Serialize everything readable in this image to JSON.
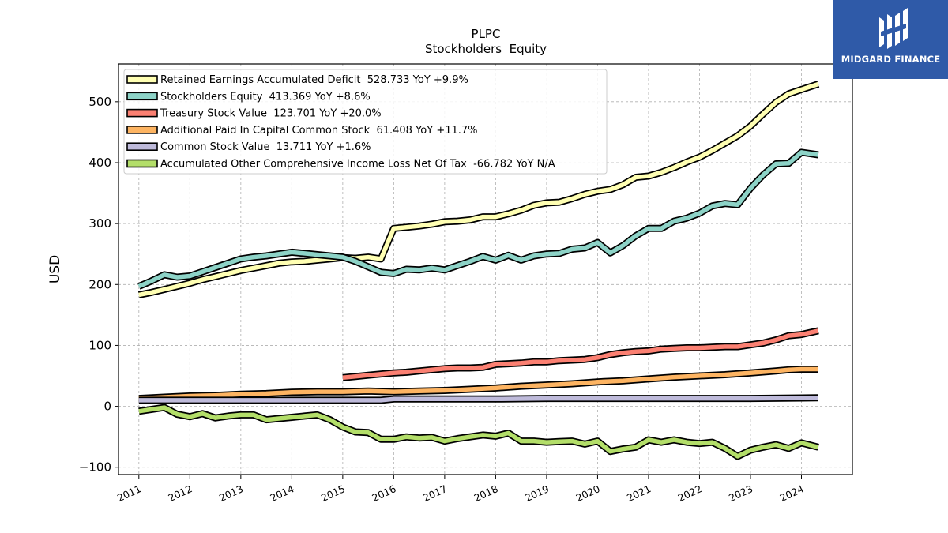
{
  "brand": {
    "name": "MIDGARD FINANCE"
  },
  "chart_data": {
    "type": "line",
    "title": "PLPC",
    "subtitle": "Stockholders  Equity",
    "ylabel": "USD",
    "xlabel": "",
    "xlim": [
      2010.6,
      2025.0
    ],
    "ylim": [
      -112,
      562
    ],
    "yticks": [
      -100,
      0,
      100,
      200,
      300,
      400,
      500
    ],
    "ytick_labels": [
      "−100",
      "0",
      "100",
      "200",
      "300",
      "400",
      "500"
    ],
    "xticks": [
      2011,
      2012,
      2013,
      2014,
      2015,
      2016,
      2017,
      2018,
      2019,
      2020,
      2021,
      2022,
      2023,
      2024
    ],
    "xtick_labels": [
      "2011",
      "2012",
      "2013",
      "2014",
      "2015",
      "2016",
      "2017",
      "2018",
      "2019",
      "2020",
      "2021",
      "2022",
      "2023",
      "2024"
    ],
    "grid": true,
    "legend_position": "top-left",
    "series": [
      {
        "name": "Retained Earnings Accumulated Deficit",
        "legend_label": "Retained Earnings Accumulated Deficit  528.733 YoY +9.9%",
        "color": "#ffffb3",
        "points": [
          [
            2011.0,
            183
          ],
          [
            2011.25,
            187
          ],
          [
            2011.5,
            192
          ],
          [
            2011.75,
            197
          ],
          [
            2012.0,
            202
          ],
          [
            2012.25,
            208
          ],
          [
            2012.5,
            213
          ],
          [
            2012.75,
            218
          ],
          [
            2013.0,
            223
          ],
          [
            2013.25,
            227
          ],
          [
            2013.5,
            231
          ],
          [
            2013.75,
            235
          ],
          [
            2014.0,
            237
          ],
          [
            2014.25,
            238
          ],
          [
            2014.5,
            240
          ],
          [
            2014.75,
            242
          ],
          [
            2015.0,
            244
          ],
          [
            2015.25,
            243
          ],
          [
            2015.5,
            245
          ],
          [
            2015.75,
            242
          ],
          [
            2016.0,
            292
          ],
          [
            2016.25,
            294
          ],
          [
            2016.5,
            296
          ],
          [
            2016.75,
            299
          ],
          [
            2017.0,
            303
          ],
          [
            2017.25,
            304
          ],
          [
            2017.5,
            306
          ],
          [
            2017.75,
            311
          ],
          [
            2018.0,
            311
          ],
          [
            2018.25,
            316
          ],
          [
            2018.5,
            322
          ],
          [
            2018.75,
            330
          ],
          [
            2019.0,
            334
          ],
          [
            2019.25,
            335
          ],
          [
            2019.5,
            341
          ],
          [
            2019.75,
            348
          ],
          [
            2020.0,
            353
          ],
          [
            2020.25,
            356
          ],
          [
            2020.5,
            364
          ],
          [
            2020.75,
            376
          ],
          [
            2021.0,
            378
          ],
          [
            2021.25,
            384
          ],
          [
            2021.5,
            392
          ],
          [
            2021.75,
            401
          ],
          [
            2022.0,
            409
          ],
          [
            2022.25,
            420
          ],
          [
            2022.5,
            432
          ],
          [
            2022.75,
            444
          ],
          [
            2023.0,
            460
          ],
          [
            2023.25,
            480
          ],
          [
            2023.5,
            499
          ],
          [
            2023.75,
            513
          ],
          [
            2024.0,
            520
          ],
          [
            2024.33,
            529
          ]
        ]
      },
      {
        "name": "Stockholders Equity",
        "legend_label": "Stockholders Equity  413.369 YoY +8.6%",
        "color": "#8dd3c7",
        "points": [
          [
            2011.0,
            197
          ],
          [
            2011.25,
            206
          ],
          [
            2011.5,
            216
          ],
          [
            2011.75,
            212
          ],
          [
            2012.0,
            214
          ],
          [
            2012.25,
            221
          ],
          [
            2012.5,
            228
          ],
          [
            2012.75,
            235
          ],
          [
            2013.0,
            242
          ],
          [
            2013.25,
            245
          ],
          [
            2013.5,
            247
          ],
          [
            2013.75,
            250
          ],
          [
            2014.0,
            253
          ],
          [
            2014.25,
            251
          ],
          [
            2014.5,
            249
          ],
          [
            2014.75,
            247
          ],
          [
            2015.0,
            245
          ],
          [
            2015.25,
            238
          ],
          [
            2015.5,
            229
          ],
          [
            2015.75,
            220
          ],
          [
            2016.0,
            218
          ],
          [
            2016.25,
            225
          ],
          [
            2016.5,
            224
          ],
          [
            2016.75,
            227
          ],
          [
            2017.0,
            224
          ],
          [
            2017.25,
            231
          ],
          [
            2017.5,
            238
          ],
          [
            2017.75,
            246
          ],
          [
            2018.0,
            240
          ],
          [
            2018.25,
            248
          ],
          [
            2018.5,
            240
          ],
          [
            2018.75,
            247
          ],
          [
            2019.0,
            250
          ],
          [
            2019.25,
            251
          ],
          [
            2019.5,
            258
          ],
          [
            2019.75,
            260
          ],
          [
            2020.0,
            269
          ],
          [
            2020.25,
            252
          ],
          [
            2020.5,
            264
          ],
          [
            2020.75,
            280
          ],
          [
            2021.0,
            292
          ],
          [
            2021.25,
            292
          ],
          [
            2021.5,
            304
          ],
          [
            2021.75,
            309
          ],
          [
            2022.0,
            317
          ],
          [
            2022.25,
            329
          ],
          [
            2022.5,
            333
          ],
          [
            2022.75,
            331
          ],
          [
            2023.0,
            358
          ],
          [
            2023.25,
            380
          ],
          [
            2023.5,
            398
          ],
          [
            2023.75,
            399
          ],
          [
            2024.0,
            417
          ],
          [
            2024.33,
            413
          ]
        ]
      },
      {
        "name": "Treasury Stock Value",
        "legend_label": "Treasury Stock Value  123.701 YoY +20.0%",
        "color": "#fb8072",
        "points": [
          [
            2015.0,
            47
          ],
          [
            2015.25,
            49
          ],
          [
            2015.5,
            51
          ],
          [
            2015.75,
            53
          ],
          [
            2016.0,
            55
          ],
          [
            2016.25,
            56
          ],
          [
            2016.5,
            58
          ],
          [
            2016.75,
            60
          ],
          [
            2017.0,
            62
          ],
          [
            2017.25,
            63
          ],
          [
            2017.5,
            63
          ],
          [
            2017.75,
            64
          ],
          [
            2018.0,
            69
          ],
          [
            2018.25,
            70
          ],
          [
            2018.5,
            71
          ],
          [
            2018.75,
            73
          ],
          [
            2019.0,
            73
          ],
          [
            2019.25,
            75
          ],
          [
            2019.5,
            76
          ],
          [
            2019.75,
            77
          ],
          [
            2020.0,
            80
          ],
          [
            2020.25,
            85
          ],
          [
            2020.5,
            88
          ],
          [
            2020.75,
            90
          ],
          [
            2021.0,
            91
          ],
          [
            2021.25,
            94
          ],
          [
            2021.5,
            95
          ],
          [
            2021.75,
            96
          ],
          [
            2022.0,
            96
          ],
          [
            2022.25,
            97
          ],
          [
            2022.5,
            98
          ],
          [
            2022.75,
            98
          ],
          [
            2023.0,
            101
          ],
          [
            2023.25,
            104
          ],
          [
            2023.5,
            109
          ],
          [
            2023.75,
            116
          ],
          [
            2024.0,
            118
          ],
          [
            2024.33,
            124
          ]
        ]
      },
      {
        "name": "Additional Paid In Capital Common Stock",
        "legend_label": "Additional Paid In Capital Common Stock  61.408 YoY +11.7%",
        "color": "#fdb462",
        "points": [
          [
            2011.0,
            13
          ],
          [
            2011.5,
            15
          ],
          [
            2012.0,
            17
          ],
          [
            2012.5,
            18
          ],
          [
            2013.0,
            20
          ],
          [
            2013.5,
            21
          ],
          [
            2014.0,
            23
          ],
          [
            2014.5,
            24
          ],
          [
            2015.0,
            24
          ],
          [
            2015.5,
            25
          ],
          [
            2016.0,
            24
          ],
          [
            2016.5,
            25
          ],
          [
            2017.0,
            26
          ],
          [
            2017.5,
            28
          ],
          [
            2018.0,
            30
          ],
          [
            2018.5,
            33
          ],
          [
            2019.0,
            35
          ],
          [
            2019.5,
            37
          ],
          [
            2020.0,
            40
          ],
          [
            2020.5,
            42
          ],
          [
            2021.0,
            45
          ],
          [
            2021.5,
            48
          ],
          [
            2022.0,
            50
          ],
          [
            2022.5,
            52
          ],
          [
            2023.0,
            55
          ],
          [
            2023.5,
            58
          ],
          [
            2023.75,
            60
          ],
          [
            2024.0,
            61
          ],
          [
            2024.33,
            61
          ]
        ]
      },
      {
        "name": "Common Stock Value",
        "legend_label": "Common Stock Value  13.711 YoY +1.6%",
        "color": "#bebada",
        "points": [
          [
            2011.0,
            10
          ],
          [
            2012.0,
            10
          ],
          [
            2013.0,
            10
          ],
          [
            2014.0,
            10
          ],
          [
            2015.0,
            10
          ],
          [
            2015.75,
            10
          ],
          [
            2016.0,
            12
          ],
          [
            2017.0,
            12
          ],
          [
            2018.0,
            12
          ],
          [
            2019.0,
            13
          ],
          [
            2020.0,
            13
          ],
          [
            2021.0,
            13
          ],
          [
            2022.0,
            13
          ],
          [
            2023.0,
            13
          ],
          [
            2024.33,
            14
          ]
        ]
      },
      {
        "name": "Accumulated Other Comprehensive Income Loss Net Of Tax",
        "legend_label": "Accumulated Other Comprehensive Income Loss Net Of Tax  -66.782 YoY N/A",
        "color": "#b3de69",
        "points": [
          [
            2011.0,
            -8
          ],
          [
            2011.25,
            -5
          ],
          [
            2011.5,
            -2
          ],
          [
            2011.75,
            -13
          ],
          [
            2012.0,
            -17
          ],
          [
            2012.25,
            -12
          ],
          [
            2012.5,
            -19
          ],
          [
            2012.75,
            -16
          ],
          [
            2013.0,
            -14
          ],
          [
            2013.25,
            -14
          ],
          [
            2013.5,
            -22
          ],
          [
            2013.75,
            -20
          ],
          [
            2014.0,
            -18
          ],
          [
            2014.25,
            -16
          ],
          [
            2014.5,
            -14
          ],
          [
            2014.75,
            -22
          ],
          [
            2015.0,
            -34
          ],
          [
            2015.25,
            -42
          ],
          [
            2015.5,
            -43
          ],
          [
            2015.75,
            -54
          ],
          [
            2016.0,
            -54
          ],
          [
            2016.25,
            -50
          ],
          [
            2016.5,
            -52
          ],
          [
            2016.75,
            -51
          ],
          [
            2017.0,
            -57
          ],
          [
            2017.25,
            -53
          ],
          [
            2017.5,
            -50
          ],
          [
            2017.75,
            -47
          ],
          [
            2018.0,
            -49
          ],
          [
            2018.25,
            -44
          ],
          [
            2018.5,
            -57
          ],
          [
            2018.75,
            -57
          ],
          [
            2019.0,
            -59
          ],
          [
            2019.25,
            -58
          ],
          [
            2019.5,
            -57
          ],
          [
            2019.75,
            -62
          ],
          [
            2020.0,
            -57
          ],
          [
            2020.25,
            -74
          ],
          [
            2020.5,
            -70
          ],
          [
            2020.75,
            -67
          ],
          [
            2021.0,
            -55
          ],
          [
            2021.25,
            -59
          ],
          [
            2021.5,
            -55
          ],
          [
            2021.75,
            -59
          ],
          [
            2022.0,
            -61
          ],
          [
            2022.25,
            -59
          ],
          [
            2022.5,
            -69
          ],
          [
            2022.75,
            -82
          ],
          [
            2023.0,
            -72
          ],
          [
            2023.25,
            -67
          ],
          [
            2023.5,
            -63
          ],
          [
            2023.75,
            -69
          ],
          [
            2024.0,
            -60
          ],
          [
            2024.33,
            -67
          ]
        ]
      }
    ]
  }
}
